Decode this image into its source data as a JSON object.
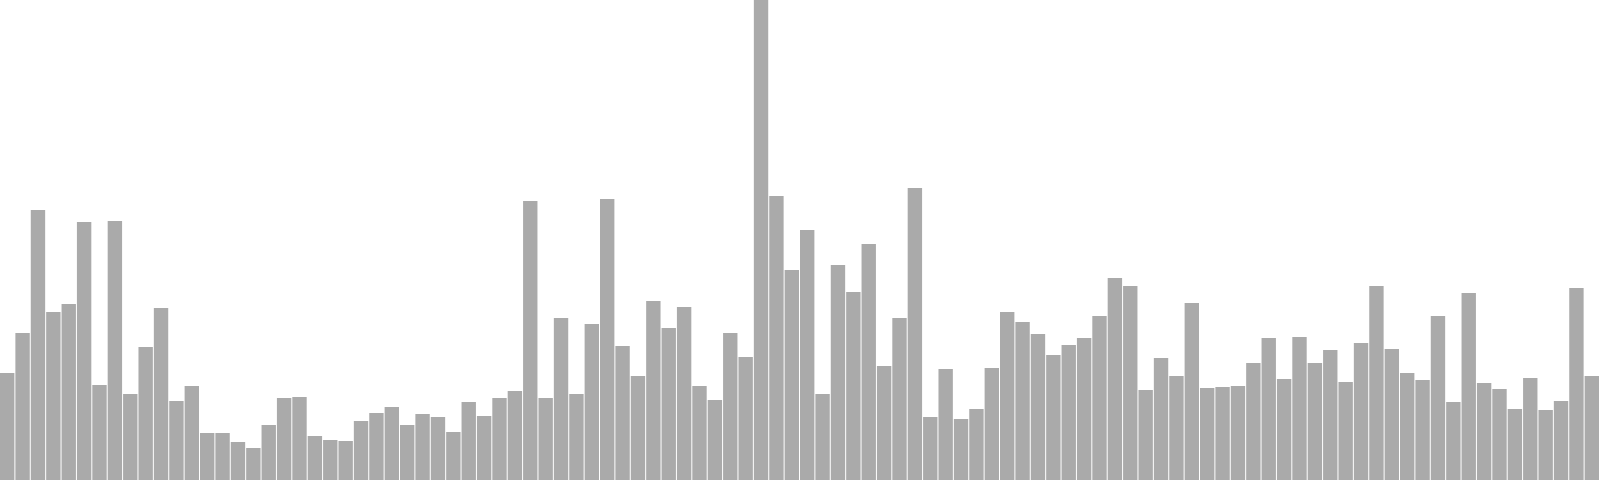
{
  "chart_data": {
    "type": "bar",
    "title": "",
    "xlabel": "",
    "ylabel": "",
    "grid": false,
    "legend": "none",
    "bar_color": "#aaaaaa",
    "ylim": [
      0,
      480
    ],
    "values": [
      107,
      147,
      270,
      168,
      176,
      258,
      95,
      259,
      86,
      133,
      172,
      79,
      94,
      47,
      47,
      38,
      32,
      55,
      82,
      83,
      44,
      40,
      39,
      59,
      67,
      73,
      55,
      66,
      63,
      48,
      78,
      64,
      82,
      89,
      279,
      82,
      162,
      86,
      156,
      281,
      134,
      104,
      179,
      152,
      173,
      94,
      80,
      147,
      123,
      480,
      284,
      210,
      250,
      86,
      215,
      188,
      236,
      114,
      162,
      292,
      63,
      111,
      61,
      71,
      112,
      168,
      158,
      146,
      125,
      135,
      142,
      164,
      202,
      194,
      90,
      122,
      104,
      177,
      92,
      93,
      94,
      117,
      142,
      101,
      143,
      117,
      130,
      98,
      137,
      194,
      131,
      107,
      100,
      164,
      78,
      187,
      97,
      91,
      71,
      102,
      70,
      79,
      192,
      104
    ]
  }
}
